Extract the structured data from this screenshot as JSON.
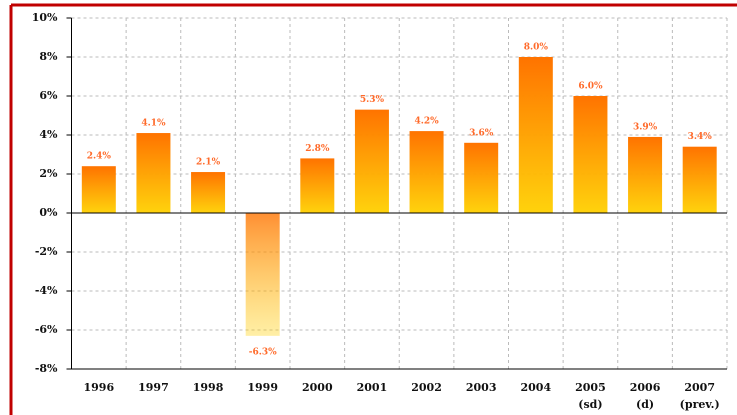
{
  "chart_data": {
    "type": "bar",
    "categories": [
      "1996",
      "1997",
      "1998",
      "1999",
      "2000",
      "2001",
      "2002",
      "2003",
      "2004",
      "2005 (sd)",
      "2006 (d)",
      "2007 (prev.)"
    ],
    "values": [
      2.4,
      4.1,
      2.1,
      -6.3,
      2.8,
      5.3,
      4.2,
      3.6,
      8.0,
      6.0,
      3.9,
      3.4
    ],
    "value_labels": [
      "2.4%",
      "4.1%",
      "2.1%",
      "-6.3%",
      "2.8%",
      "5.3%",
      "4.2%",
      "3.6%",
      "8.0%",
      "6.0%",
      "3.9%",
      "3.4%"
    ],
    "color": [
      "#ff7300",
      "#ffd000"
    ],
    "ylim": [
      -8,
      10
    ],
    "yticks": [
      {
        "value": -8,
        "label": "-8%"
      },
      {
        "value": -6,
        "label": "-6%"
      },
      {
        "value": -4,
        "label": "-4%"
      },
      {
        "value": -2,
        "label": "-2%"
      },
      {
        "value": 0,
        "label": "0%"
      },
      {
        "value": 2,
        "label": "2%"
      },
      {
        "value": 4,
        "label": "4%"
      },
      {
        "value": 6,
        "label": "6%"
      },
      {
        "value": 8,
        "label": "8%"
      },
      {
        "value": 10,
        "label": "10%"
      }
    ],
    "grid": true
  }
}
